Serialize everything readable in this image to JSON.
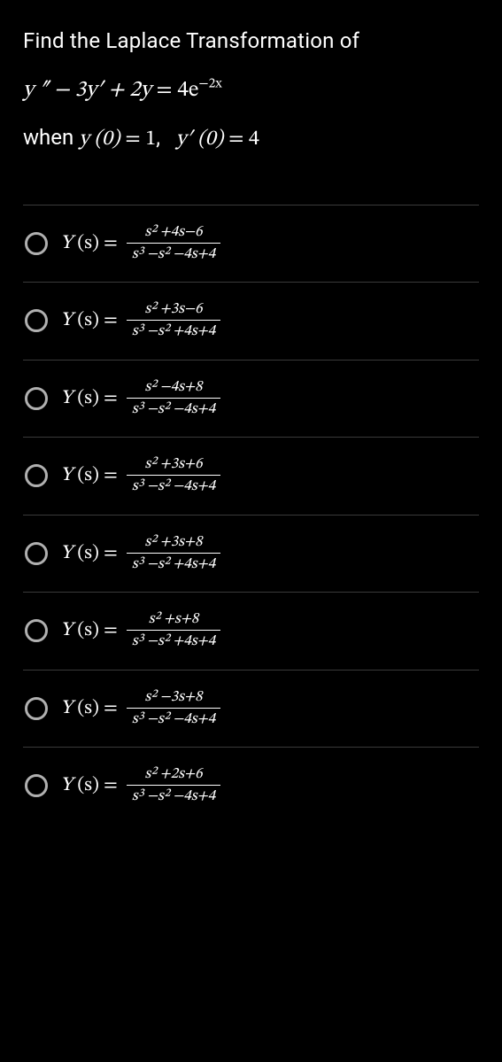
{
  "question": {
    "intro": "Find the Laplace Transformation of",
    "equation_lhs": "y ″ − 3y′ + 2y",
    "equation_rhs_base": "4e",
    "equation_rhs_exp": "−2x",
    "cond_prefix": "when ",
    "cond_y0_lhs": "y (0)",
    "cond_y0_rhs": "1",
    "cond_yp0_lhs": "y′ (0)",
    "cond_yp0_rhs": "4"
  },
  "options": [
    {
      "num": "s² +4s−6",
      "den": "s³ −s² −4s+4"
    },
    {
      "num": "s² +3s−6",
      "den": "s³ −s² +4s+4"
    },
    {
      "num": "s² −4s+8",
      "den": "s³ −s² −4s+4"
    },
    {
      "num": "s² +3s+6",
      "den": "s³ −s² −4s+4"
    },
    {
      "num": "s² +3s+8",
      "den": "s³ −s² +4s+4"
    },
    {
      "num": "s² +s+8",
      "den": "s³ −s² +4s+4"
    },
    {
      "num": "s² −3s+8",
      "den": "s³ −s² −4s+4"
    },
    {
      "num": "s² +2s+6",
      "den": "s³ −s² −4s+4"
    }
  ],
  "formula_lhs_Y": "Y",
  "formula_lhs_arg": "(s)",
  "formula_eq": "="
}
